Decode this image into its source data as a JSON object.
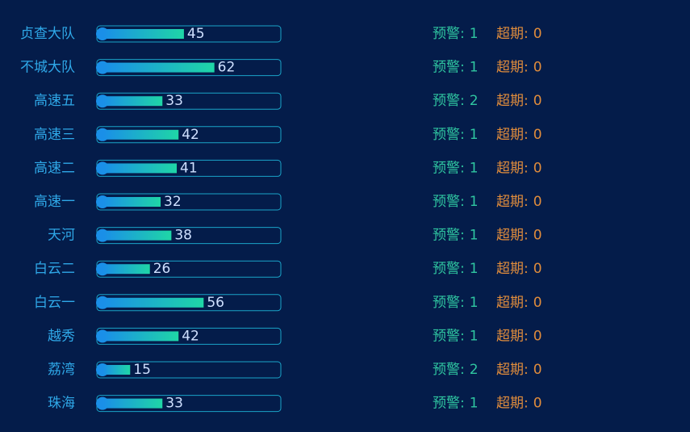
{
  "chart_data": {
    "type": "bar",
    "orientation": "horizontal",
    "categories": [
      "贞查大队",
      "不城大队",
      "高速五",
      "高速三",
      "高速二",
      "高速一",
      "天河",
      "白云二",
      "白云一",
      "越秀",
      "荔湾",
      "珠海"
    ],
    "values": [
      45,
      62,
      33,
      42,
      41,
      32,
      38,
      26,
      56,
      42,
      15,
      33
    ],
    "xlim": [
      0,
      100
    ],
    "colors": [
      "#1a8fe8",
      "#1fd6a6"
    ],
    "warning_label": "预警:",
    "warnings": [
      1,
      1,
      2,
      1,
      1,
      1,
      1,
      1,
      1,
      1,
      2,
      1
    ],
    "warning_color": "#2fc5a0",
    "overdue_label": "超期:",
    "overdue": [
      0,
      0,
      0,
      0,
      0,
      0,
      0,
      0,
      0,
      0,
      0,
      0
    ],
    "overdue_color": "#e08c3c"
  }
}
